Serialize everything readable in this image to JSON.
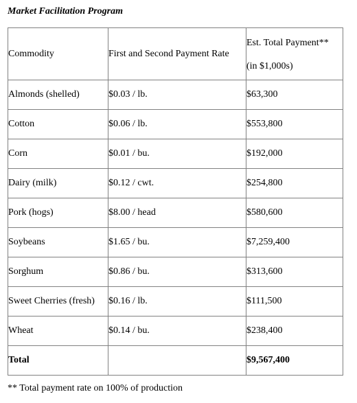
{
  "title": "Market Facilitation Program",
  "table": {
    "header": [
      "Commodity",
      "First and Second Payment Rate",
      {
        "line1": "Est. Total Payment**",
        "line2": "(in $1,000s)"
      }
    ],
    "rows": [
      [
        "Almonds (shelled)",
        "$0.03 / lb.",
        "$63,300"
      ],
      [
        "Cotton",
        "$0.06 / lb.",
        "$553,800"
      ],
      [
        "Corn",
        "$0.01 / bu.",
        "$192,000"
      ],
      [
        "Dairy (milk)",
        "$0.12 / cwt.",
        "$254,800"
      ],
      [
        "Pork (hogs)",
        "$8.00 / head",
        "$580,600"
      ],
      [
        "Soybeans",
        "$1.65 / bu.",
        "$7,259,400"
      ],
      [
        "Sorghum",
        "$0.86 / bu.",
        "$313,600"
      ],
      [
        "Sweet Cherries (fresh)",
        "$0.16 / lb.",
        "$111,500"
      ],
      [
        "Wheat",
        "$0.14 / bu.",
        "$238,400"
      ]
    ],
    "total": {
      "label": "Total",
      "payment": "$9,567,400"
    }
  },
  "footnote": "** Total payment rate on 100% of production"
}
